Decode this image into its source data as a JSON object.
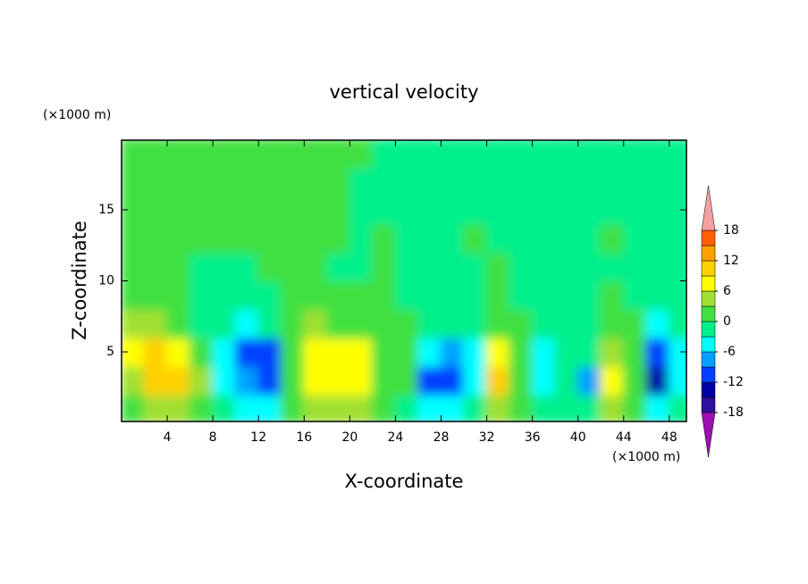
{
  "chart_data": {
    "type": "contour",
    "title": "vertical velocity",
    "xlabel": "X-coordinate",
    "ylabel": "Z-coordinate",
    "xunit": "(×1000 m)",
    "yunit": "(×1000 m)",
    "xlim": [
      0,
      49.5
    ],
    "ylim": [
      0.1,
      19.9
    ],
    "xticks": [
      4,
      8,
      12,
      16,
      20,
      24,
      28,
      32,
      36,
      40,
      44,
      48
    ],
    "yticks": [
      5,
      10,
      15
    ],
    "x": [
      1,
      3,
      5,
      7,
      9,
      11,
      13,
      15,
      17,
      19,
      21,
      23,
      25,
      27,
      29,
      31,
      33,
      35,
      37,
      39,
      41,
      43,
      45,
      47,
      49
    ],
    "y": [
      1,
      3,
      5,
      7,
      9,
      11,
      13,
      15,
      17,
      19
    ],
    "values": [
      [
        2,
        4,
        4,
        2,
        -2,
        -4,
        -4,
        1,
        3,
        4,
        4,
        0,
        -1,
        -4,
        -5,
        -3,
        3,
        0,
        -3,
        -2,
        -2,
        3,
        2,
        -6,
        -3
      ],
      [
        5,
        10,
        9,
        3,
        -4,
        -9,
        -10,
        2,
        7,
        8,
        7,
        1,
        0,
        -10,
        -12,
        -5,
        9,
        1,
        -4,
        -3,
        -7,
        6,
        2,
        -14,
        -4
      ],
      [
        7,
        9,
        8,
        2,
        -4,
        -10,
        -11,
        2,
        6,
        7,
        6,
        2,
        0,
        -6,
        -7,
        -4,
        6,
        1,
        -4,
        -3,
        -3,
        5,
        1,
        -12,
        -4
      ],
      [
        4,
        4,
        2,
        -1,
        -3,
        -4,
        -3,
        1,
        3,
        2,
        2,
        1,
        0,
        -2,
        -3,
        -2,
        2,
        0,
        -3,
        -2,
        -1,
        2,
        0,
        -6,
        -2
      ],
      [
        1,
        1,
        0,
        -1,
        -2,
        -1,
        -1,
        0,
        1,
        0,
        0,
        0,
        -1,
        -1,
        -2,
        -1,
        0,
        -1,
        -2,
        -1,
        -1,
        0,
        -1,
        -3,
        -1
      ],
      [
        1,
        0,
        0,
        -1,
        -1,
        -1,
        0,
        0,
        0,
        -1,
        -1,
        0,
        -1,
        -1,
        -1,
        -1,
        0,
        -1,
        -1,
        -1,
        -1,
        -1,
        -1,
        -1,
        -1
      ],
      [
        1,
        1,
        1,
        0,
        0,
        0,
        1,
        0,
        0,
        0,
        -1,
        0,
        -1,
        -1,
        -1,
        0,
        -1,
        -1,
        -1,
        -1,
        -1,
        0,
        -1,
        -1,
        -1
      ],
      [
        1,
        1,
        1,
        1,
        1,
        1,
        1,
        1,
        0,
        0,
        -1,
        -1,
        -1,
        -1,
        -1,
        -1,
        -1,
        -1,
        -1,
        -1,
        -1,
        -1,
        -1,
        -1,
        -1
      ],
      [
        1,
        1,
        1,
        1,
        1,
        1,
        1,
        1,
        1,
        0,
        -1,
        -1,
        -1,
        -1,
        -1,
        -1,
        -1,
        -1,
        -1,
        -1,
        -1,
        -1,
        -1,
        -1,
        -1
      ],
      [
        1,
        1,
        1,
        1,
        1,
        1,
        1,
        1,
        1,
        1,
        1,
        -1,
        -1,
        -1,
        -1,
        -1,
        -1,
        -1,
        -1,
        -1,
        -1,
        -1,
        -1,
        -1,
        -1
      ]
    ],
    "levels": [
      -18,
      -15,
      -12,
      -9,
      -6,
      -3,
      0,
      3,
      6,
      9,
      12,
      15,
      18
    ],
    "colors": [
      "#9a10b0",
      "#3010a0",
      "#0000a8",
      "#0040ff",
      "#00a0ff",
      "#00ffff",
      "#00f08c",
      "#40e040",
      "#a0e030",
      "#ffff00",
      "#ffd000",
      "#ffa000",
      "#ff6000",
      "#f4a0a0"
    ],
    "colorbar_ticks": [
      -18,
      -12,
      -6,
      0,
      6,
      12,
      18
    ]
  }
}
